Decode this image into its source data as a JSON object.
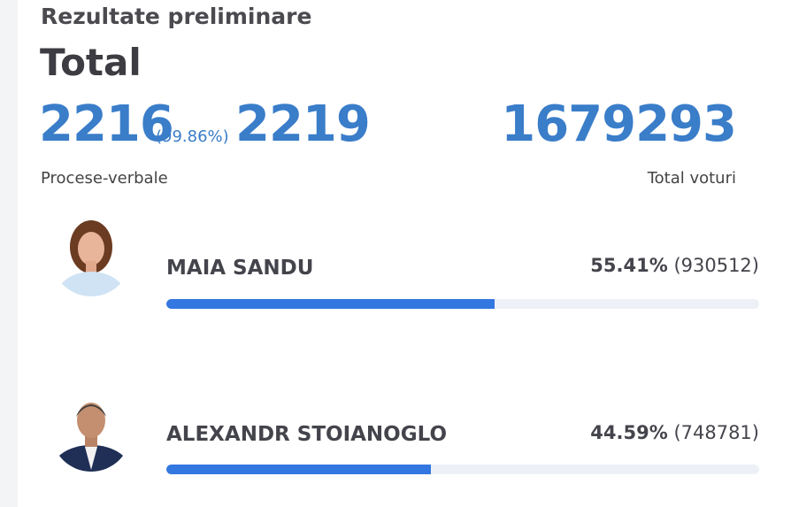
{
  "header": {
    "subtitle": "Rezultate preliminare",
    "title": "Total"
  },
  "summary": {
    "counted": "2216",
    "counted_percent": "(99.86%)",
    "total_reports": "2219",
    "reports_label": "Procese-verbale",
    "total_votes": "1679293",
    "votes_label": "Total voturi"
  },
  "candidates": {
    "xlim": [
      0,
      100
    ],
    "items": [
      {
        "name": "MAIA SANDU",
        "percent": 55.41,
        "percent_label": "55.41%",
        "votes_label": "(930512)"
      },
      {
        "name": "ALEXANDR STOIANOGLO",
        "percent": 44.59,
        "percent_label": "44.59%",
        "votes_label": "(748781)"
      }
    ]
  }
}
